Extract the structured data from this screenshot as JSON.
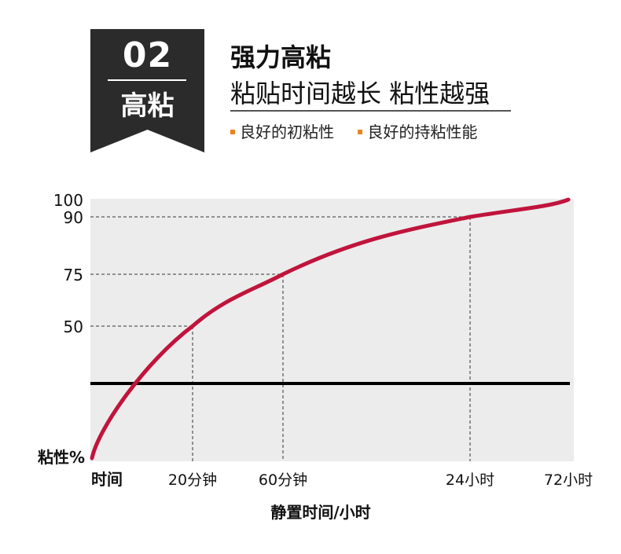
{
  "header": {
    "badge_number": "02",
    "badge_label": "高粘",
    "title": "强力高粘",
    "subtitle": "粘贴时间越长 粘性越强",
    "bullets": [
      "良好的初粘性",
      "良好的持粘性能"
    ],
    "accent_color": "#e8841f",
    "badge_color": "#2b2b2b"
  },
  "chart_data": {
    "type": "line",
    "title": "",
    "xlabel": "静置时间/小时",
    "ylabel": "粘性%",
    "x_origin_label": "时间",
    "x_ticks": [
      "20分钟",
      "60分钟",
      "24小时",
      "72小时"
    ],
    "y_ticks": [
      50,
      75,
      90,
      100
    ],
    "ylim": [
      0,
      100
    ],
    "grid": false,
    "series": [
      {
        "color": "#c0143c",
        "points": [
          {
            "x": "0",
            "y": 0
          },
          {
            "x": "20分钟",
            "y": 50
          },
          {
            "x": "60分钟",
            "y": 75
          },
          {
            "x": "24小时",
            "y": 90
          },
          {
            "x": "72小时",
            "y": 100
          }
        ]
      }
    ],
    "threshold_line": {
      "y": 28,
      "color": "#000000"
    },
    "guide_lines": [
      {
        "x": "20分钟",
        "y": 50
      },
      {
        "x": "60分钟",
        "y": 75
      },
      {
        "x": "24小时",
        "y": 90
      }
    ],
    "plot_background": "#ececec"
  }
}
